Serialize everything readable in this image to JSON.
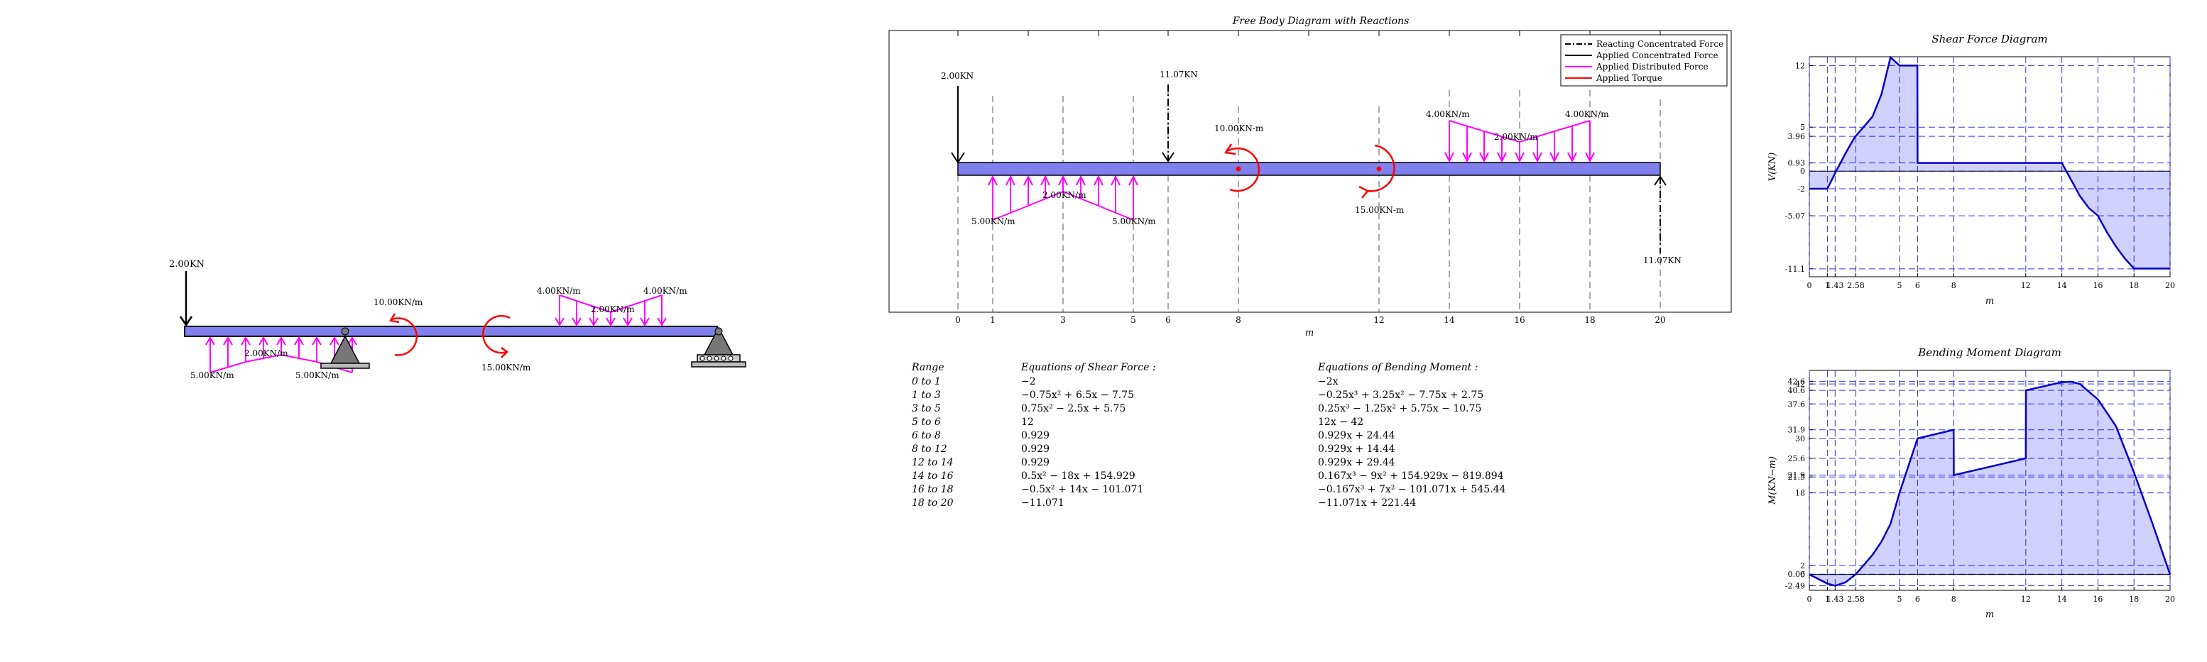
{
  "sketch": {
    "point_load": "2.00KN",
    "torque_cw": "10.00KN/m",
    "torque_ccw": "15.00KN/m",
    "dist_left_start": "5.00KN/m",
    "dist_left_mid": "2.00KN/m",
    "dist_left_end": "5.00KN/m",
    "dist_right_start": "4.00KN/m",
    "dist_right_mid": "2.00KN/m",
    "dist_right_end": "4.00KN/m"
  },
  "fbd": {
    "title": "Free Body Diagram with Reactions",
    "xlabel": "m",
    "legend": [
      {
        "label": "Reacting Concentrated Force",
        "color": "#000000",
        "style": "dashdot"
      },
      {
        "label": "Applied Concentrated Force",
        "color": "#000000",
        "style": "solid"
      },
      {
        "label": "Applied Distributed Force",
        "color": "#ff00ff",
        "style": "solid"
      },
      {
        "label": "Applied Torque",
        "color": "#ff0000",
        "style": "solid"
      }
    ],
    "xticks": [
      "0",
      "1",
      "3",
      "5",
      "6",
      "8",
      "12",
      "14",
      "16",
      "18",
      "20"
    ],
    "labels": {
      "applied_force": "2.00KN",
      "reaction_left": "11.07KN",
      "reaction_right": "11.07KN",
      "torque_top": "10.00KN-m",
      "torque_bottom": "15.00KN-m",
      "dist_left_start": "5.00KN/m",
      "dist_left_mid": "2.00KN/m",
      "dist_left_end": "5.00KN/m",
      "dist_right_start": "4.00KN/m",
      "dist_right_mid": "2.00KN/m",
      "dist_right_end": "4.00KN/m"
    }
  },
  "equations": {
    "headers": {
      "range": "Range",
      "shear": "Equations of Shear Force :",
      "moment": "Equations of Bending Moment :"
    },
    "rows": [
      {
        "range": "0 to 1",
        "shear": "−2",
        "moment": "−2x"
      },
      {
        "range": "1 to 3",
        "shear": "−0.75x² + 6.5x − 7.75",
        "moment": "−0.25x³ + 3.25x² − 7.75x + 2.75"
      },
      {
        "range": "3 to 5",
        "shear": "0.75x² − 2.5x + 5.75",
        "moment": "0.25x³ − 1.25x² + 5.75x − 10.75"
      },
      {
        "range": "5 to 6",
        "shear": "12",
        "moment": "12x − 42"
      },
      {
        "range": "6 to 8",
        "shear": "0.929",
        "moment": "0.929x + 24.44"
      },
      {
        "range": "8 to 12",
        "shear": "0.929",
        "moment": "0.929x + 14.44"
      },
      {
        "range": "12 to 14",
        "shear": "0.929",
        "moment": "0.929x + 29.44"
      },
      {
        "range": "14 to 16",
        "shear": "0.5x² − 18x + 154.929",
        "moment": "0.167x³ − 9x² + 154.929x − 819.894"
      },
      {
        "range": "16 to 18",
        "shear": "−0.5x² + 14x − 101.071",
        "moment": "−0.167x³ + 7x² − 101.071x + 545.44"
      },
      {
        "range": "18 to 20",
        "shear": "−11.071",
        "moment": "−11.071x + 221.44"
      }
    ]
  },
  "chart_data": [
    {
      "type": "area",
      "title": "Shear Force Diagram",
      "xlabel": "m",
      "ylabel": "V(KN)",
      "xlim": [
        0,
        20
      ],
      "ylim": [
        -12,
        13
      ],
      "x_ticks": [
        "0",
        "1",
        "1.43",
        "2.58",
        "5",
        "6",
        "8",
        "12",
        "14",
        "16",
        "18",
        "20"
      ],
      "y_ticks": [
        "12",
        "5",
        "3.96",
        "0.93",
        "0",
        "-2",
        "-5.07",
        "-11.1"
      ],
      "x": [
        0,
        0.99,
        1,
        1.5,
        2,
        2.5,
        3,
        3.5,
        4,
        4.5,
        5,
        5.99,
        6,
        14,
        14.5,
        15,
        15.5,
        16,
        16.5,
        17,
        17.5,
        18,
        20
      ],
      "values": [
        -2,
        -2,
        -2,
        0.06,
        2.0,
        3.81,
        5.0,
        6.19,
        8.75,
        12.94,
        12,
        12,
        0.929,
        0.929,
        -0.95,
        -2.82,
        -4.2,
        -5.07,
        -6.95,
        -8.57,
        -9.95,
        -11.07,
        -11.07
      ]
    },
    {
      "type": "area",
      "title": "Bending Moment Diagram",
      "xlabel": "m",
      "ylabel": "M(KN−m)",
      "xlim": [
        0,
        20
      ],
      "ylim": [
        -3.5,
        45
      ],
      "x_ticks": [
        "0",
        "1",
        "1.43",
        "2.58",
        "5",
        "6",
        "8",
        "12",
        "14",
        "16",
        "18",
        "20"
      ],
      "y_ticks": [
        "42.6",
        "42",
        "40.6",
        "37.6",
        "31.9",
        "30",
        "25.6",
        "21.9",
        "21.5",
        "18",
        "2",
        "0.06",
        "0",
        "-2.49"
      ],
      "x": [
        0,
        1,
        1.43,
        2,
        2.58,
        3,
        3.5,
        4,
        4.5,
        5,
        6,
        6.01,
        8,
        8.01,
        12,
        12.01,
        14,
        14.5,
        15,
        16,
        17,
        18,
        19,
        20
      ],
      "values": [
        0,
        -2,
        -2.49,
        -1.75,
        0.06,
        2,
        4.31,
        7.25,
        11.16,
        18,
        30,
        30,
        31.9,
        21.9,
        25.6,
        40.6,
        42.4,
        42.5,
        42.0,
        38.6,
        32.7,
        22.5,
        11.5,
        0
      ]
    }
  ]
}
